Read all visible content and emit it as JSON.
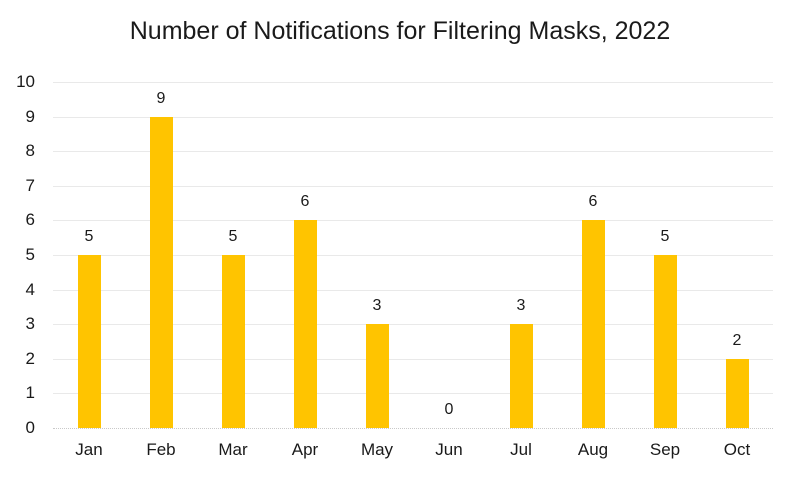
{
  "chart_data": {
    "type": "bar",
    "title": "Number of Notifications for Filtering Masks, 2022",
    "categories": [
      "Jan",
      "Feb",
      "Mar",
      "Apr",
      "May",
      "Jun",
      "Jul",
      "Aug",
      "Sep",
      "Oct"
    ],
    "values": [
      5,
      9,
      5,
      6,
      3,
      0,
      3,
      6,
      5,
      2
    ],
    "xlabel": "",
    "ylabel": "",
    "ylim": [
      0,
      10
    ],
    "yticks": [
      0,
      1,
      2,
      3,
      4,
      5,
      6,
      7,
      8,
      9,
      10
    ],
    "grid": "horizontal",
    "legend": "none",
    "data_labels": true,
    "bar_color": "#FFC400",
    "gridline_color": "#E9E9E9",
    "axis_line_color": "#C9C9C9",
    "text_color": "#1A1A1A"
  }
}
